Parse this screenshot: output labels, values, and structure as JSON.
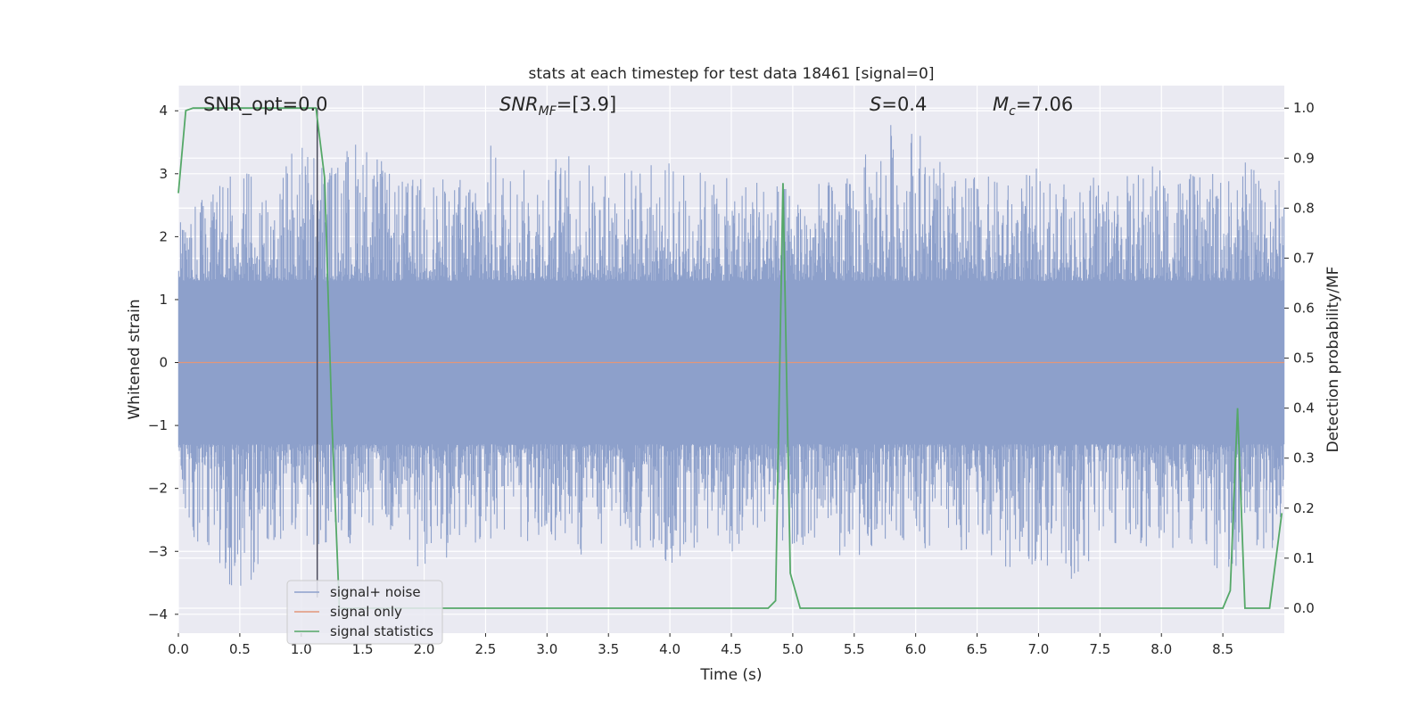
{
  "chart_data": {
    "type": "line",
    "title": "stats at each timestep for test data 18461 [signal=0]",
    "xlabel": "Time (s)",
    "ylabel": "Whitened strain",
    "ylabel_right": "Detection probability/MF",
    "xlim": [
      0.0,
      9.0
    ],
    "ylim": [
      -4.3,
      4.4
    ],
    "ylim_right": [
      -0.05,
      1.045
    ],
    "x_ticks": [
      "0.0",
      "0.5",
      "1.0",
      "1.5",
      "2.0",
      "2.5",
      "3.0",
      "3.5",
      "4.0",
      "4.5",
      "5.0",
      "5.5",
      "6.0",
      "6.5",
      "7.0",
      "7.5",
      "8.0",
      "8.5"
    ],
    "x_tick_values": [
      0.0,
      0.5,
      1.0,
      1.5,
      2.0,
      2.5,
      3.0,
      3.5,
      4.0,
      4.5,
      5.0,
      5.5,
      6.0,
      6.5,
      7.0,
      7.5,
      8.0,
      8.5
    ],
    "y_ticks": [
      "4",
      "3",
      "2",
      "1",
      "0",
      "−1",
      "−2",
      "−3",
      "−4"
    ],
    "y_tick_values": [
      4,
      3,
      2,
      1,
      0,
      -1,
      -2,
      -3,
      -4
    ],
    "y_right_ticks": [
      "1.0",
      "0.9",
      "0.8",
      "0.7",
      "0.6",
      "0.5",
      "0.4",
      "0.3",
      "0.2",
      "0.1",
      "0.0"
    ],
    "y_right_tick_values": [
      1.0,
      0.9,
      0.8,
      0.7,
      0.6,
      0.5,
      0.4,
      0.3,
      0.2,
      0.1,
      0.0
    ],
    "grid": true,
    "legend_position": "lower-left",
    "annotations": [
      {
        "id": "snr-opt",
        "text": "SNR_opt=0.0"
      },
      {
        "id": "snr-mf",
        "text": "SNR_MF=[3.9]"
      },
      {
        "id": "s-val",
        "text": "S=0.4"
      },
      {
        "id": "mc-val",
        "text": "M_c=7.06"
      }
    ],
    "marker_line_x": 1.13,
    "series": [
      {
        "name": "signal+ noise",
        "axis": "left",
        "color": "#8da0cb",
        "description_envelope": {
          "x": [
            0.0,
            0.25,
            0.5,
            0.75,
            1.0,
            1.25,
            1.5,
            1.75,
            2.0,
            2.25,
            2.5,
            2.75,
            3.0,
            3.25,
            3.5,
            3.75,
            4.0,
            4.25,
            4.5,
            4.75,
            5.0,
            5.25,
            5.5,
            5.75,
            6.0,
            6.25,
            6.5,
            6.75,
            7.0,
            7.25,
            7.5,
            7.75,
            8.0,
            8.25,
            8.5,
            8.75,
            9.0
          ],
          "upper": [
            2.2,
            2.8,
            3.2,
            3.0,
            3.7,
            3.2,
            3.8,
            2.9,
            3.0,
            2.9,
            3.6,
            3.0,
            3.4,
            3.3,
            3.1,
            3.2,
            3.2,
            3.1,
            2.9,
            3.1,
            2.8,
            2.9,
            3.0,
            3.9,
            3.9,
            3.0,
            3.0,
            2.9,
            3.1,
            2.8,
            3.1,
            3.0,
            3.3,
            3.0,
            3.0,
            3.3,
            2.9
          ],
          "lower": [
            -2.6,
            -3.0,
            -3.8,
            -2.9,
            -2.8,
            -3.2,
            -2.7,
            -2.9,
            -3.4,
            -3.1,
            -2.8,
            -3.1,
            -2.9,
            -3.2,
            -2.8,
            -3.1,
            -3.3,
            -2.9,
            -3.1,
            -2.7,
            -2.9,
            -3.0,
            -3.2,
            -2.8,
            -2.9,
            -3.1,
            -3.0,
            -3.3,
            -3.2,
            -3.6,
            -3.0,
            -2.8,
            -3.1,
            -3.0,
            -3.5,
            -2.9,
            -3.3
          ]
        }
      },
      {
        "name": "signal only",
        "axis": "left",
        "color": "#e1967a",
        "x": [
          0.0,
          9.0
        ],
        "y": [
          0.0,
          0.0
        ]
      },
      {
        "name": "signal statistics",
        "axis": "right",
        "color": "#55a868",
        "x": [
          0.0,
          0.06,
          0.12,
          0.3,
          0.6,
          0.9,
          1.05,
          1.12,
          1.19,
          1.25,
          1.31,
          1.4,
          2.0,
          3.0,
          4.0,
          4.8,
          4.86,
          4.92,
          4.98,
          5.06,
          5.5,
          6.0,
          7.0,
          8.0,
          8.5,
          8.56,
          8.62,
          8.68,
          8.88,
          8.98
        ],
        "y": [
          0.83,
          0.995,
          1.0,
          1.0,
          1.0,
          1.0,
          1.0,
          1.0,
          0.86,
          0.37,
          0.0,
          0.0,
          0.0,
          0.0,
          0.0,
          0.0,
          0.015,
          0.85,
          0.07,
          0.0,
          0.0,
          0.0,
          0.0,
          0.0,
          0.0,
          0.035,
          0.4,
          0.0,
          0.0,
          0.19
        ]
      }
    ]
  }
}
